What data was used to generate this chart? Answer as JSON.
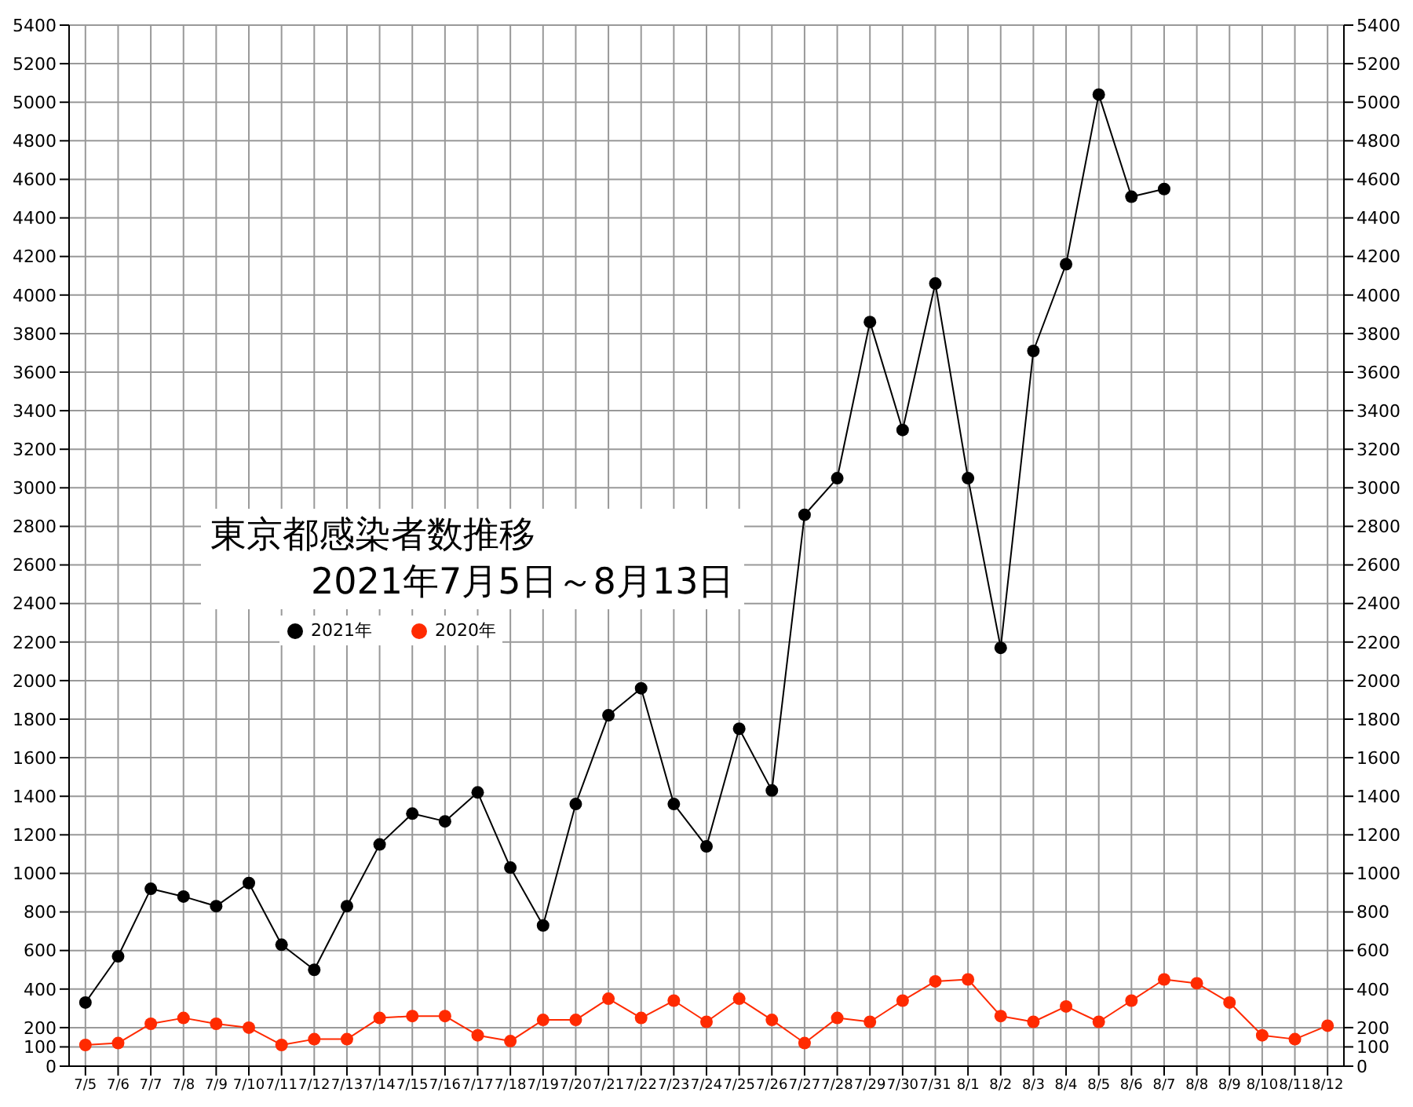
{
  "chart_data": {
    "type": "line",
    "title": "東京都感染者数推移",
    "subtitle": "2021年7月5日～8月13日",
    "categories": [
      "7/5",
      "7/6",
      "7/7",
      "7/8",
      "7/9",
      "7/10",
      "7/11",
      "7/12",
      "7/13",
      "7/14",
      "7/15",
      "7/16",
      "7/17",
      "7/18",
      "7/19",
      "7/20",
      "7/21",
      "7/22",
      "7/23",
      "7/24",
      "7/25",
      "7/26",
      "7/27",
      "7/28",
      "7/29",
      "7/30",
      "7/31",
      "8/1",
      "8/2",
      "8/3",
      "8/4",
      "8/5",
      "8/6",
      "8/7",
      "8/8",
      "8/9",
      "8/10",
      "8/11",
      "8/12"
    ],
    "series": [
      {
        "name": "2021年",
        "color": "#000000",
        "values": [
          330,
          570,
          920,
          880,
          830,
          950,
          630,
          500,
          830,
          1150,
          1310,
          1270,
          1420,
          1030,
          730,
          1360,
          1820,
          1960,
          1360,
          1140,
          1750,
          1430,
          2860,
          3050,
          3860,
          3300,
          4060,
          3050,
          2170,
          3710,
          4160,
          5040,
          4510,
          4550,
          null,
          null,
          null,
          null,
          null
        ]
      },
      {
        "name": "2020年",
        "color": "#ff2a00",
        "values": [
          110,
          120,
          220,
          250,
          220,
          200,
          110,
          140,
          140,
          250,
          260,
          260,
          160,
          130,
          240,
          240,
          350,
          250,
          340,
          230,
          350,
          240,
          120,
          250,
          230,
          340,
          440,
          450,
          260,
          230,
          310,
          230,
          340,
          450,
          430,
          330,
          160,
          140,
          210
        ]
      }
    ],
    "ylim": [
      0,
      5400
    ],
    "yticks": [
      0,
      100,
      200,
      400,
      600,
      800,
      1000,
      1200,
      1400,
      1600,
      1800,
      2000,
      2200,
      2400,
      2600,
      2800,
      3000,
      3200,
      3400,
      3600,
      3800,
      4000,
      4200,
      4400,
      4600,
      4800,
      5000,
      5200,
      5400
    ],
    "y2lim": [
      0,
      5400
    ],
    "y2ticks": [
      0,
      100,
      200,
      400,
      600,
      800,
      1000,
      1200,
      1400,
      1600,
      1800,
      2000,
      2200,
      2400,
      2600,
      2800,
      3000,
      3200,
      3400,
      3600,
      3800,
      4000,
      4200,
      4400,
      4600,
      4800,
      5000,
      5200,
      5400
    ],
    "grid": true,
    "legend": "left",
    "marker": "circle",
    "line_style": "solid"
  }
}
